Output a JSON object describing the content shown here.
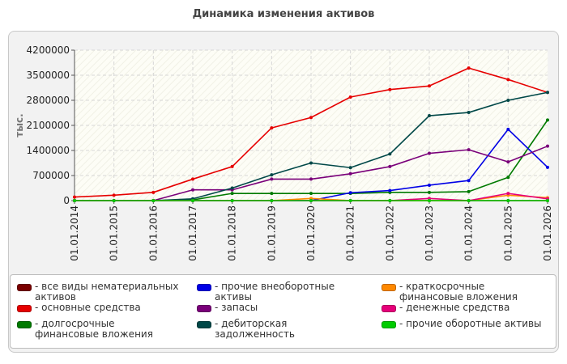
{
  "chart_data": {
    "type": "line",
    "title": "Динамика изменения активов",
    "ylabel": "тыс.",
    "xlabel": "",
    "ylim": [
      0,
      4200000
    ],
    "yticks": [
      "0",
      "700000",
      "1400000",
      "2100000",
      "2800000",
      "3500000",
      "4200000"
    ],
    "categories": [
      "01.01.2014",
      "01.01.2015",
      "01.01.2016",
      "01.01.2017",
      "01.01.2018",
      "01.01.2019",
      "01.01.2020",
      "01.01.2021",
      "01.01.2022",
      "01.01.2023",
      "01.01.2024",
      "01.01.2025",
      "01.01.2026"
    ],
    "grid": true,
    "legend_position": "bottom",
    "series": [
      {
        "name": "все виды нематериальных активов",
        "color": "#7a0000",
        "values": [
          0,
          0,
          0,
          0,
          0,
          0,
          0,
          0,
          0,
          0,
          0,
          0,
          0
        ]
      },
      {
        "name": "основные средства",
        "color": "#e60000",
        "values": [
          100000,
          150000,
          230000,
          600000,
          950000,
          2030000,
          2320000,
          2890000,
          3100000,
          3200000,
          3700000,
          3380000,
          3020000
        ]
      },
      {
        "name": "долгосрочные финансовые вложения",
        "color": "#007a00",
        "values": [
          0,
          0,
          0,
          20000,
          200000,
          200000,
          200000,
          200000,
          230000,
          230000,
          250000,
          650000,
          2250000
        ]
      },
      {
        "name": "прочие внеоборотные активы",
        "color": "#0000e6",
        "values": [
          0,
          0,
          0,
          0,
          0,
          0,
          0,
          220000,
          280000,
          430000,
          560000,
          1990000,
          930000
        ]
      },
      {
        "name": "запасы",
        "color": "#7a007a",
        "values": [
          0,
          0,
          0,
          300000,
          300000,
          600000,
          600000,
          750000,
          950000,
          1320000,
          1420000,
          1080000,
          1520000
        ]
      },
      {
        "name": "дебиторская задолженность",
        "color": "#004848",
        "values": [
          0,
          0,
          0,
          50000,
          350000,
          720000,
          1050000,
          920000,
          1300000,
          2370000,
          2460000,
          2800000,
          3020000
        ]
      },
      {
        "name": "краткосрочные финансовые вложения",
        "color": "#ff8800",
        "values": [
          0,
          0,
          0,
          0,
          0,
          0,
          60000,
          0,
          0,
          0,
          0,
          150000,
          80000
        ]
      },
      {
        "name": "денежные средства",
        "color": "#e6007a",
        "values": [
          0,
          0,
          0,
          0,
          0,
          0,
          0,
          0,
          0,
          60000,
          0,
          200000,
          50000
        ]
      },
      {
        "name": "прочие оборотные активы",
        "color": "#00cc00",
        "values": [
          0,
          0,
          0,
          0,
          0,
          0,
          0,
          0,
          0,
          0,
          0,
          0,
          0
        ]
      }
    ]
  }
}
